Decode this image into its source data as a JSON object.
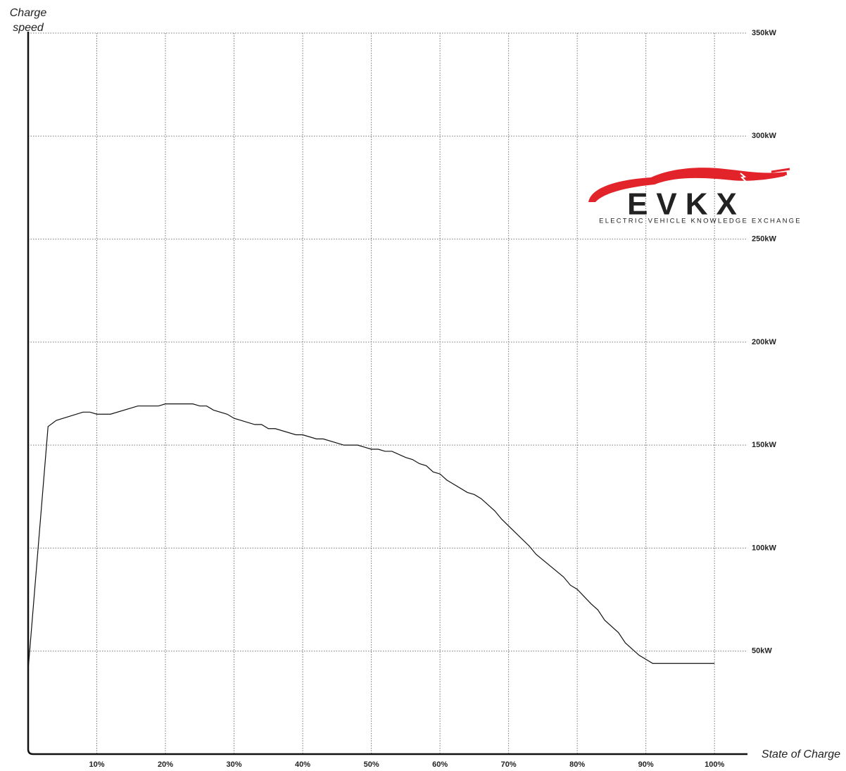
{
  "chart_data": {
    "type": "line",
    "y_label": "Charge speed",
    "x_label": "State of Charge",
    "logo": {
      "name": "EVKX",
      "tagline": "ELECTRIC VEHICLE KNOWLEDGE EXCHANGE"
    },
    "color": "#111111",
    "grid": true,
    "xlim": [
      0,
      104.8
    ],
    "ylim": [
      0,
      350
    ],
    "xticks": [
      {
        "value": 10,
        "label": "10%"
      },
      {
        "value": 20,
        "label": "20%"
      },
      {
        "value": 30,
        "label": "30%"
      },
      {
        "value": 40,
        "label": "40%"
      },
      {
        "value": 50,
        "label": "50%"
      },
      {
        "value": 60,
        "label": "60%"
      },
      {
        "value": 70,
        "label": "70%"
      },
      {
        "value": 80,
        "label": "80%"
      },
      {
        "value": 90,
        "label": "90%"
      },
      {
        "value": 100,
        "label": "100%"
      }
    ],
    "yticks": [
      {
        "value": 50,
        "label": "50kW"
      },
      {
        "value": 100,
        "label": "100kW"
      },
      {
        "value": 150,
        "label": "150kW"
      },
      {
        "value": 200,
        "label": "200kW"
      },
      {
        "value": 250,
        "label": "250kW"
      },
      {
        "value": 300,
        "label": "300kW"
      },
      {
        "value": 350,
        "label": "350kW"
      }
    ],
    "x": [
      0,
      2.9,
      4.1,
      5.1,
      8,
      9,
      10,
      12,
      16,
      19,
      20,
      24,
      25,
      26,
      27,
      29,
      30,
      33,
      34,
      35,
      36,
      39,
      40,
      42,
      43,
      46,
      48,
      50,
      51,
      52,
      53,
      55,
      56,
      57,
      58,
      59,
      60,
      61,
      64,
      65,
      66,
      67,
      68,
      69,
      73,
      74,
      78,
      79,
      80,
      82,
      83,
      84,
      86,
      87,
      89,
      90,
      91,
      100
    ],
    "values": [
      41,
      159,
      162,
      163,
      166,
      166,
      165,
      165,
      169,
      169,
      170,
      170,
      169,
      169,
      167,
      165,
      163,
      160,
      160,
      158,
      158,
      155,
      155,
      153,
      153,
      150,
      150,
      148,
      148,
      147,
      147,
      144,
      143,
      141,
      140,
      137,
      136,
      133,
      127,
      126,
      124,
      121,
      118,
      114,
      101,
      97,
      86,
      82,
      80,
      73,
      70,
      65,
      59,
      54,
      48,
      46,
      44,
      44
    ]
  }
}
